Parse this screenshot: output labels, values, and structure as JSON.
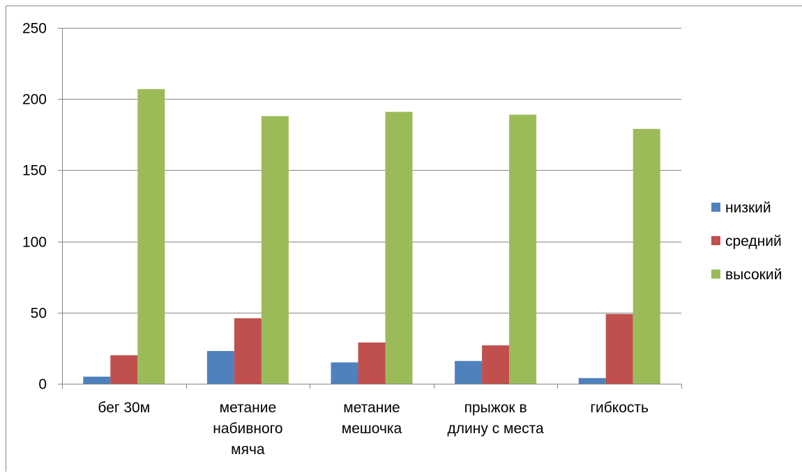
{
  "chart_data": {
    "type": "bar",
    "title": "",
    "xlabel": "",
    "ylabel": "",
    "ylim": [
      0,
      250
    ],
    "yticks": [
      0,
      50,
      100,
      150,
      200,
      250
    ],
    "grid": true,
    "legend": "right",
    "categories": [
      [
        "бег 30м"
      ],
      [
        "метание",
        "набивного",
        "мяча"
      ],
      [
        "метание",
        "мешочка"
      ],
      [
        "прыжок в",
        "длину с места"
      ],
      [
        "гибкость"
      ]
    ],
    "series": [
      {
        "name": "низкий",
        "color": "#4F81BD",
        "values": [
          5,
          23,
          15,
          16,
          4
        ]
      },
      {
        "name": "средний",
        "color": "#C0504D",
        "values": [
          20,
          46,
          29,
          27,
          49
        ]
      },
      {
        "name": "высокий",
        "color": "#9BBB59",
        "values": [
          207,
          188,
          191,
          189,
          179
        ]
      }
    ]
  }
}
